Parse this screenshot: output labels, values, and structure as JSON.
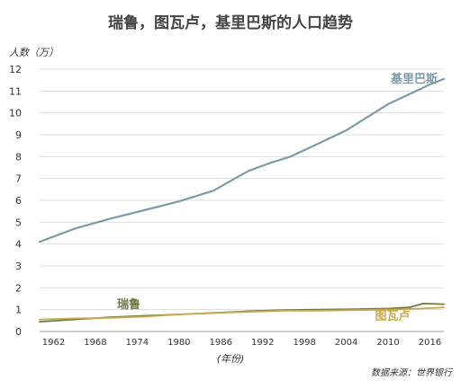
{
  "chart_data": {
    "type": "line",
    "title": "瑞鲁，图瓦卢，基里巴斯的人口趋势",
    "ylabel": "人数（万）",
    "xlabel": "(年份)",
    "source": "数据来源：世界银行",
    "ylim": [
      0,
      12
    ],
    "xlim": [
      1960,
      2018
    ],
    "yticks": [
      "0",
      "1",
      "2",
      "3",
      "4",
      "5",
      "6",
      "7",
      "8",
      "9",
      "10",
      "11",
      "12"
    ],
    "xticks": [
      "1962",
      "1968",
      "1974",
      "1980",
      "1986",
      "1992",
      "1998",
      "2004",
      "2010",
      "2016"
    ],
    "grid": "horizontal",
    "series": [
      {
        "name": "基里巴斯",
        "color": "#7d9aa6",
        "x": [
          1960,
          1965,
          1970,
          1975,
          1980,
          1985,
          1988,
          1990,
          1993,
          1996,
          2000,
          2004,
          2007,
          2010,
          2013,
          2016,
          2018
        ],
        "y": [
          4.1,
          4.7,
          5.15,
          5.55,
          5.95,
          6.45,
          7.0,
          7.35,
          7.7,
          8.0,
          8.6,
          9.2,
          9.8,
          10.4,
          10.85,
          11.3,
          11.55
        ]
      },
      {
        "name": "瑞鲁",
        "color": "#707a40",
        "x": [
          1960,
          1965,
          1970,
          1975,
          1980,
          1985,
          1990,
          1995,
          2000,
          2005,
          2010,
          2013,
          2015,
          2018
        ],
        "y": [
          0.45,
          0.55,
          0.65,
          0.72,
          0.78,
          0.85,
          0.93,
          0.98,
          1.0,
          1.02,
          1.05,
          1.1,
          1.28,
          1.25
        ]
      },
      {
        "name": "图瓦卢",
        "color": "#c9a84c",
        "x": [
          1960,
          1965,
          1970,
          1975,
          1980,
          1985,
          1990,
          1995,
          2000,
          2005,
          2010,
          2015,
          2018
        ],
        "y": [
          0.55,
          0.6,
          0.62,
          0.68,
          0.78,
          0.85,
          0.9,
          0.95,
          0.95,
          0.98,
          1.0,
          1.05,
          1.1
        ]
      }
    ],
    "series_label_positions": [
      "top-right",
      "lower-left",
      "lower-right"
    ]
  }
}
